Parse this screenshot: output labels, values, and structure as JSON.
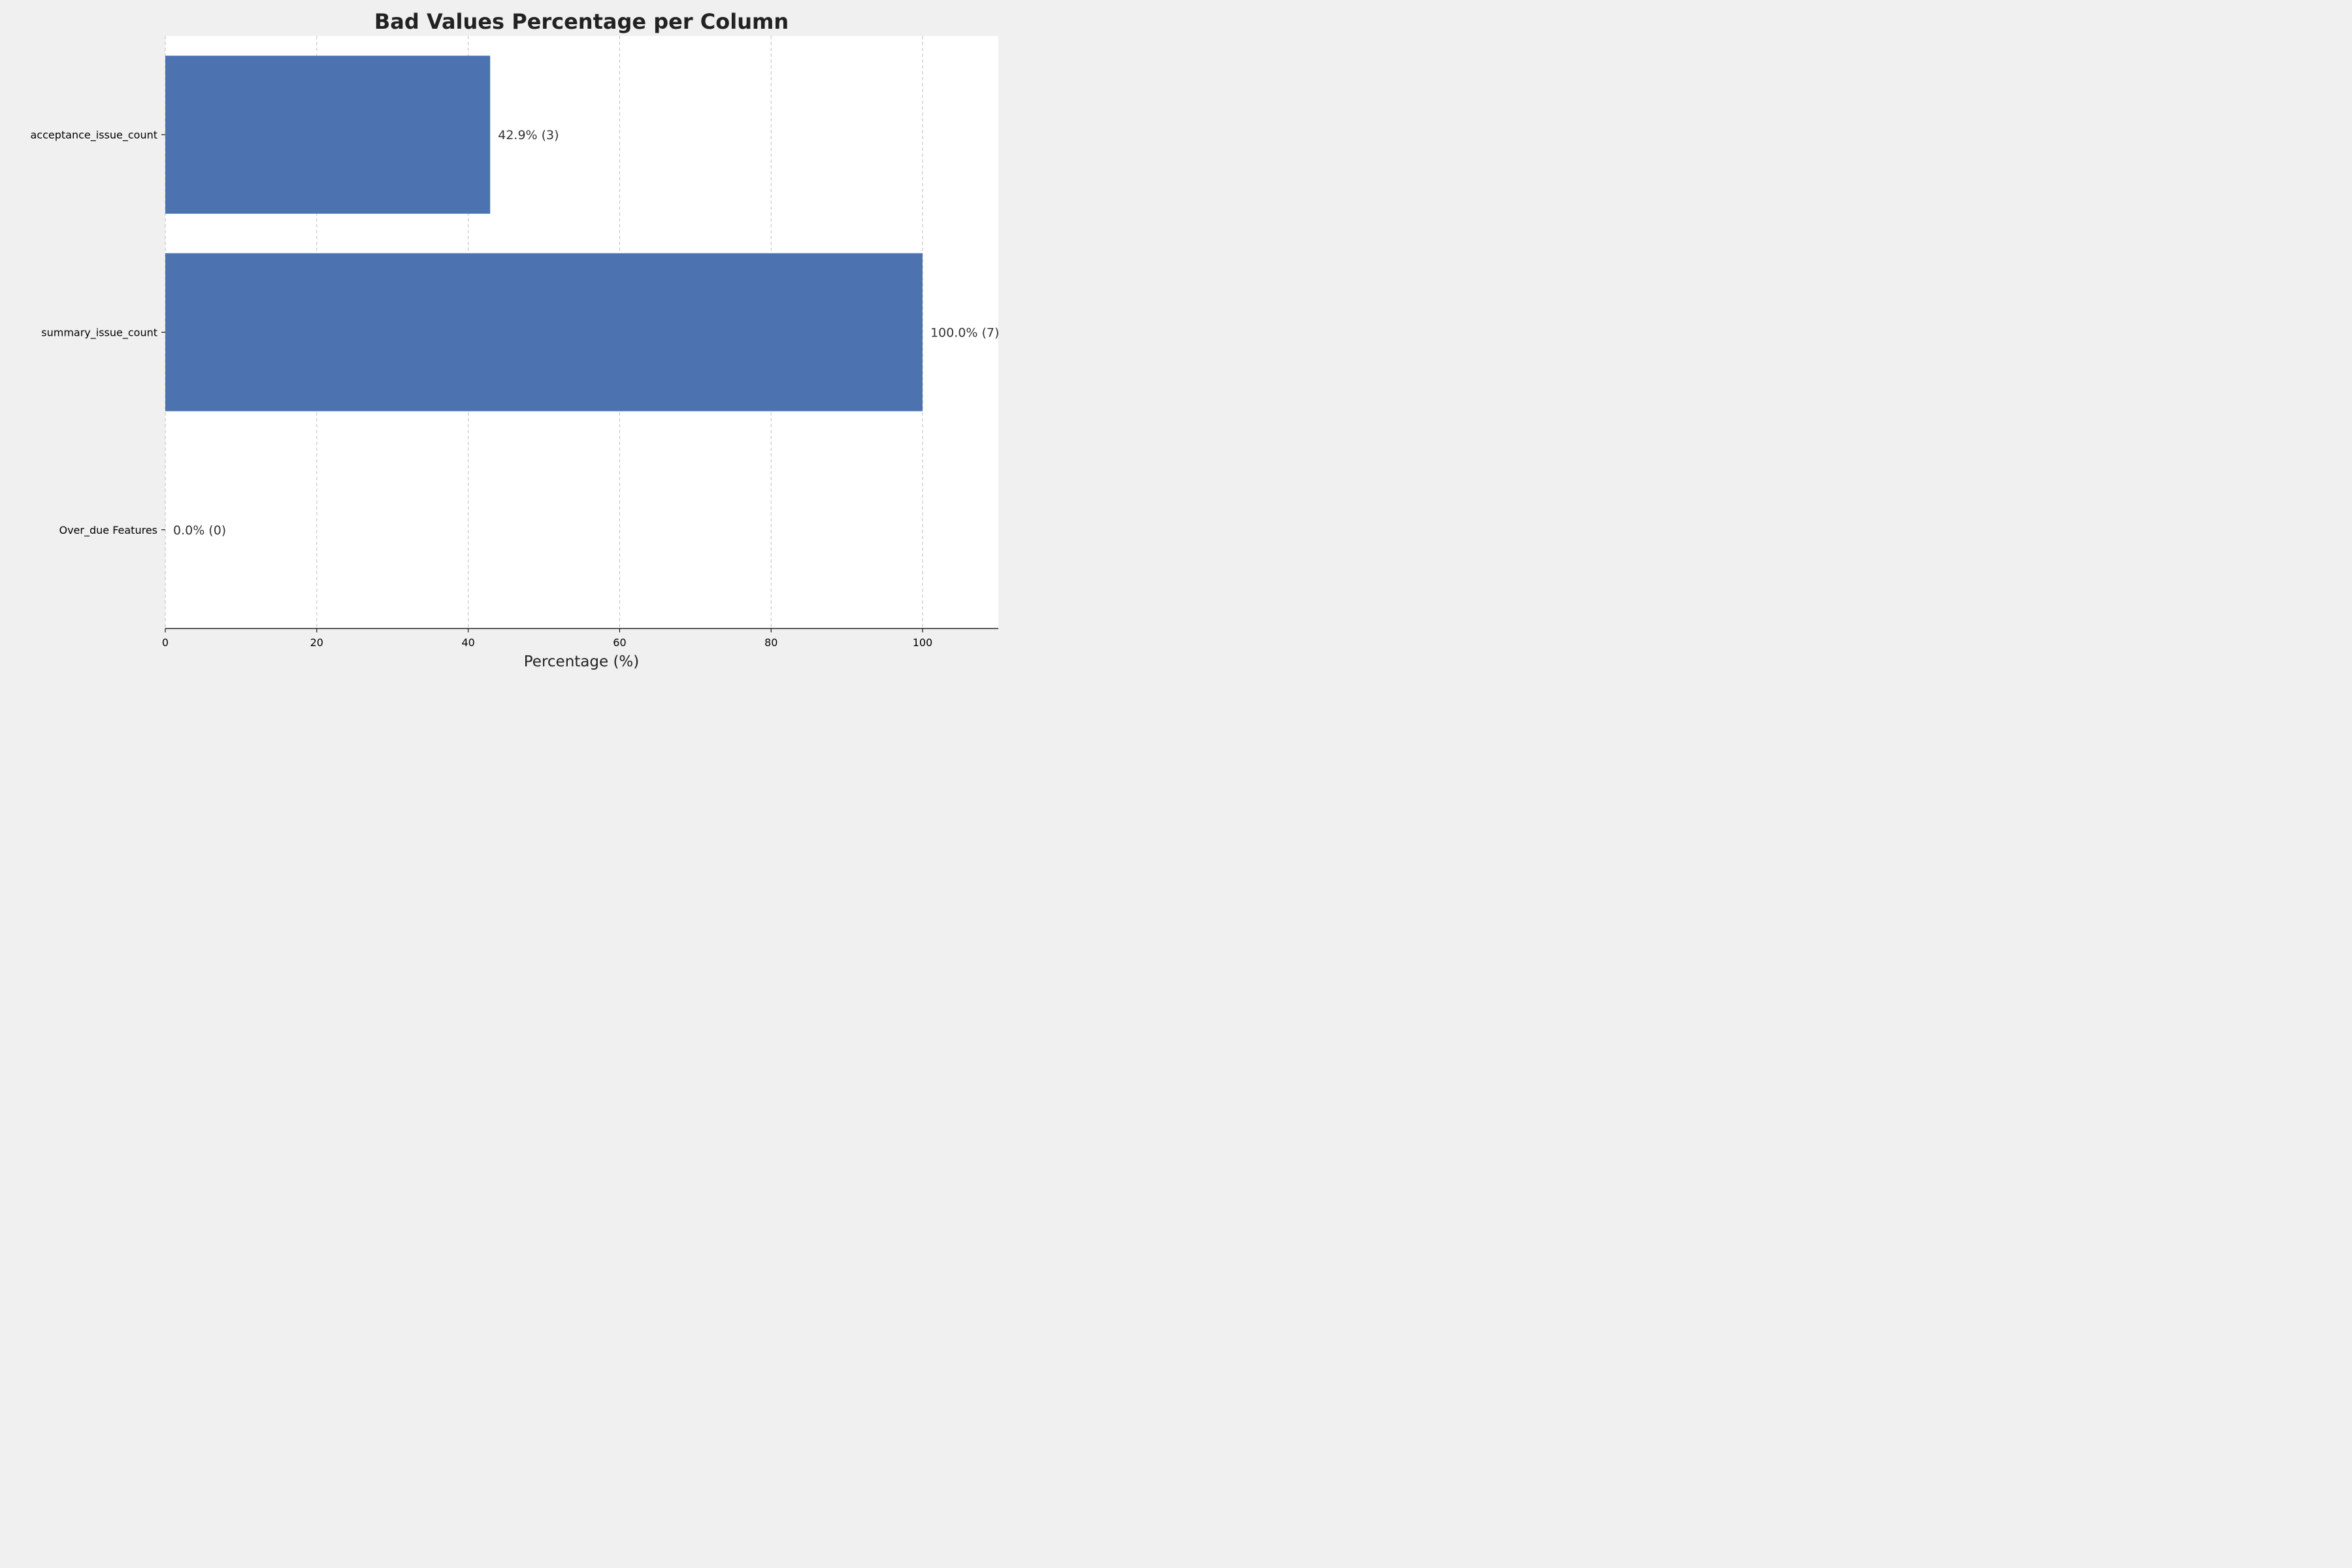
{
  "chart_data": {
    "type": "bar",
    "orientation": "horizontal",
    "title": "Bad Values Percentage per Column",
    "xlabel": "Percentage (%)",
    "ylabel": "",
    "categories": [
      "acceptance_issue_count",
      "summary_issue_count",
      "Over_due Features"
    ],
    "values": [
      42.9,
      100.0,
      0.0
    ],
    "data_labels": [
      "42.9% (3)",
      "100.0% (7)",
      "0.0% (0)"
    ],
    "xlim": [
      0,
      110
    ],
    "xticks": [
      0,
      20,
      40,
      60,
      80,
      100
    ],
    "xtick_labels": [
      "0",
      "20",
      "40",
      "60",
      "80",
      "100"
    ],
    "grid": "vertical dashed",
    "legend": "none",
    "colors": {
      "bar": "#4c72b0",
      "plot_background": "#ffffff",
      "figure_background": "#f0f0f0",
      "grid": "#c4c4c4",
      "text": "#222222",
      "data_label": "#333333"
    }
  }
}
